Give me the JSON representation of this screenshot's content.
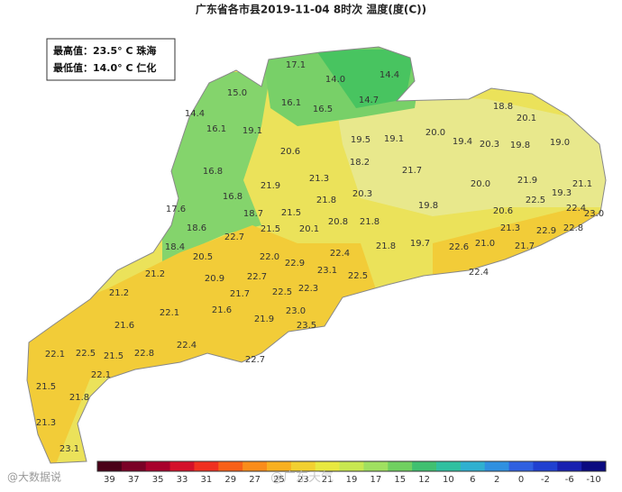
{
  "title": "广东省各市县2019-11-04 8时次 温度(度(C))",
  "info": [
    "最高值：23.5° C 珠海",
    "最低值：14.0° C 仁化"
  ],
  "labels": [
    "15.0",
    "17.1",
    "14.0",
    "14.4",
    "14.7",
    "16.1",
    "16.5",
    "14.4",
    "16.1",
    "19.1",
    "18.8",
    "20.1",
    "20.0",
    "19.5",
    "19.1",
    "19.4",
    "20.3",
    "19.8",
    "19.0",
    "20.6",
    "18.2",
    "21.7",
    "16.8",
    "21.9",
    "21.3",
    "20.0",
    "21.9",
    "21.1",
    "19.3",
    "16.8",
    "21.8",
    "20.3",
    "22.5",
    "22.4",
    "23.0",
    "17.6",
    "18.7",
    "21.5",
    "19.8",
    "20.6",
    "18.6",
    "21.5",
    "20.1",
    "20.8",
    "21.8",
    "21.3",
    "22.9",
    "22.8",
    "22.7",
    "18.4",
    "22.4",
    "21.8",
    "19.7",
    "22.6",
    "21.0",
    "21.7",
    "20.5",
    "22.0",
    "22.9",
    "23.1",
    "22.5",
    "22.4",
    "21.2",
    "20.9",
    "22.7",
    "21.7",
    "22.5",
    "22.3",
    "21.2",
    "22.1",
    "21.6",
    "23.0",
    "21.9",
    "23.5",
    "21.6",
    "22.4",
    "22.1",
    "22.5",
    "21.5",
    "22.8",
    "22.7",
    "22.1",
    "21.5",
    "21.8",
    "21.3",
    "23.1"
  ],
  "colorbar": {
    "labels": [
      39,
      37,
      35,
      33,
      31,
      29,
      27,
      25,
      23,
      21,
      19,
      17,
      15,
      12,
      10,
      6,
      2,
      0,
      -2,
      -6,
      -10
    ],
    "colors": [
      "#4a0018",
      "#7a0026",
      "#a8002c",
      "#d4102a",
      "#f03020",
      "#f86018",
      "#fa8c1a",
      "#f8b020",
      "#f2d030",
      "#e8e840",
      "#c8e850",
      "#a0e060",
      "#70d060",
      "#40c070",
      "#30c0a0",
      "#30b0d0",
      "#3090e0",
      "#3060e0",
      "#2040d0",
      "#1820b0",
      "#0a0a80"
    ]
  },
  "watermarks": [
    "@大数据说",
    "@广东天气"
  ]
}
